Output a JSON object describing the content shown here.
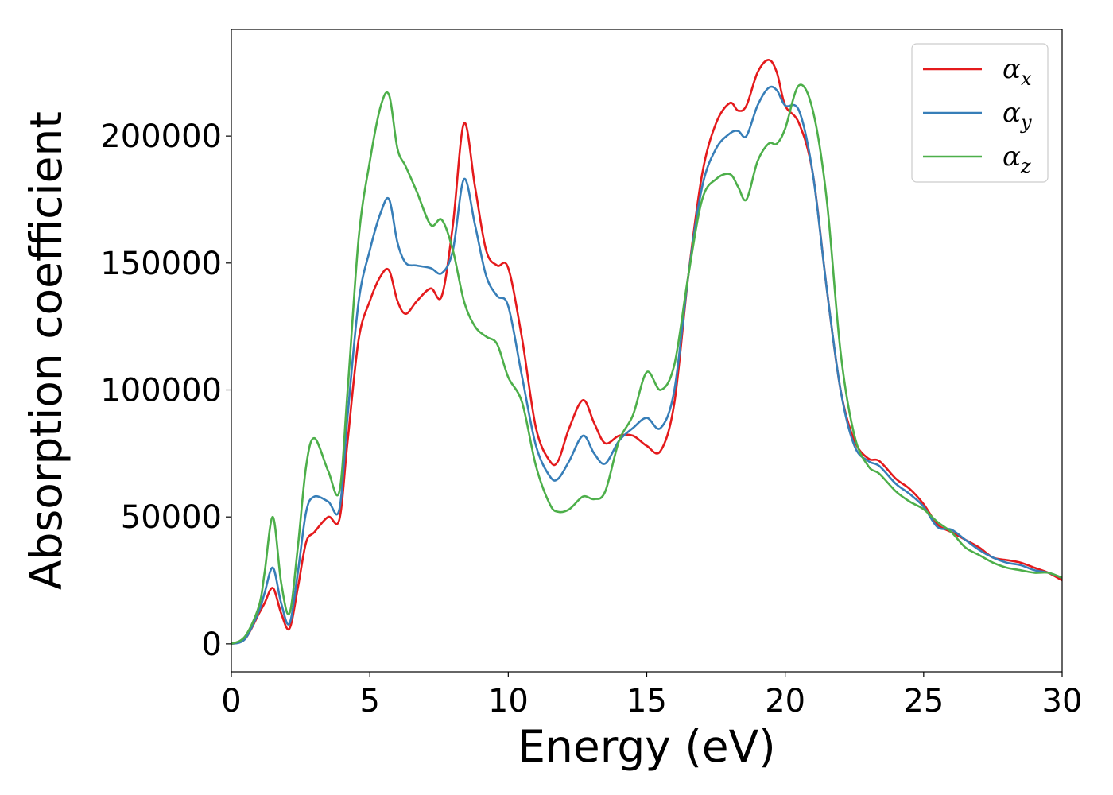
{
  "chart_data": {
    "type": "line",
    "title": "",
    "xlabel": "Energy (eV)",
    "ylabel": "Absorption coefficient",
    "xlim": [
      0,
      30
    ],
    "ylim": [
      -11000,
      242000
    ],
    "xticks": [
      0,
      5,
      10,
      15,
      20,
      25,
      30
    ],
    "yticks": [
      0,
      50000,
      100000,
      150000,
      200000
    ],
    "grid": false,
    "legend_position": "top-right",
    "series": [
      {
        "name": "α_x",
        "legend_main": "α",
        "legend_sub": "x",
        "color": "#e41a1c",
        "x": [
          0,
          0.5,
          1,
          1.2,
          1.5,
          1.8,
          2.1,
          2.4,
          2.7,
          3,
          3.5,
          3.9,
          4.2,
          4.6,
          5,
          5.4,
          5.7,
          6,
          6.3,
          6.7,
          7.2,
          7.6,
          8,
          8.4,
          8.8,
          9.2,
          9.6,
          10,
          10.5,
          11,
          11.5,
          11.8,
          12.2,
          12.7,
          13.1,
          13.5,
          14,
          14.5,
          15,
          15.5,
          16,
          16.5,
          17,
          17.5,
          18,
          18.3,
          18.6,
          19,
          19.4,
          19.7,
          20,
          20.5,
          21,
          21.5,
          22,
          22.5,
          23,
          23.4,
          24,
          24.5,
          25,
          25.5,
          26,
          26.5,
          27,
          27.5,
          28,
          28.5,
          29,
          29.5,
          30
        ],
        "y": [
          0,
          2000,
          12000,
          16000,
          22000,
          12000,
          6000,
          22000,
          40000,
          44000,
          50000,
          49000,
          80000,
          120000,
          135000,
          145000,
          147000,
          135000,
          130000,
          135000,
          140000,
          137000,
          165000,
          205000,
          180000,
          155000,
          149000,
          148000,
          120000,
          85000,
          72000,
          72000,
          85000,
          96000,
          87000,
          79000,
          82000,
          82000,
          78000,
          76000,
          95000,
          145000,
          185000,
          205000,
          213000,
          210000,
          212000,
          225000,
          230000,
          225000,
          212000,
          205000,
          185000,
          140000,
          100000,
          80000,
          73000,
          72000,
          65000,
          61000,
          55000,
          47000,
          44000,
          41000,
          38000,
          34000,
          33000,
          32000,
          30000,
          28000,
          25000
        ]
      },
      {
        "name": "α_y",
        "legend_main": "α",
        "legend_sub": "y",
        "color": "#377eb8",
        "x": [
          0,
          0.5,
          1,
          1.2,
          1.5,
          1.8,
          2.1,
          2.4,
          2.7,
          3,
          3.5,
          3.9,
          4.2,
          4.6,
          5,
          5.4,
          5.7,
          6,
          6.3,
          6.7,
          7.2,
          7.6,
          8,
          8.4,
          8.8,
          9.2,
          9.6,
          10,
          10.5,
          11,
          11.5,
          11.8,
          12.2,
          12.7,
          13.1,
          13.5,
          14,
          14.5,
          15,
          15.5,
          16,
          16.5,
          17,
          17.5,
          18,
          18.3,
          18.6,
          19,
          19.4,
          19.7,
          20,
          20.5,
          21,
          21.5,
          22,
          22.5,
          23,
          23.4,
          24,
          24.5,
          25,
          25.5,
          26,
          26.5,
          27,
          27.5,
          28,
          28.5,
          29,
          29.5,
          30
        ],
        "y": [
          0,
          2000,
          13000,
          20000,
          30000,
          16000,
          8000,
          28000,
          52000,
          58000,
          56000,
          53000,
          90000,
          135000,
          155000,
          170000,
          175000,
          158000,
          150000,
          149000,
          148000,
          146000,
          155000,
          183000,
          165000,
          145000,
          137000,
          133000,
          105000,
          78000,
          66000,
          65000,
          72000,
          82000,
          75000,
          71000,
          80000,
          85000,
          89000,
          85000,
          100000,
          145000,
          180000,
          195000,
          201000,
          202000,
          200000,
          212000,
          219000,
          218000,
          212000,
          210000,
          185000,
          140000,
          100000,
          78000,
          72000,
          70000,
          63000,
          59000,
          54000,
          46000,
          45000,
          41000,
          37000,
          34000,
          32000,
          31000,
          29000,
          28000,
          26000
        ]
      },
      {
        "name": "α_z",
        "legend_main": "α",
        "legend_sub": "z",
        "color": "#4daf4a",
        "x": [
          0,
          0.5,
          1,
          1.2,
          1.5,
          1.8,
          2.1,
          2.4,
          2.7,
          3,
          3.5,
          3.9,
          4.2,
          4.6,
          5,
          5.4,
          5.7,
          6,
          6.3,
          6.7,
          7.2,
          7.6,
          8,
          8.4,
          8.8,
          9.2,
          9.6,
          10,
          10.5,
          11,
          11.5,
          11.8,
          12.2,
          12.7,
          13.1,
          13.5,
          14,
          14.5,
          15,
          15.5,
          16,
          16.5,
          17,
          17.5,
          18,
          18.3,
          18.6,
          19,
          19.4,
          19.7,
          20,
          20.5,
          21,
          21.5,
          22,
          22.5,
          23,
          23.4,
          24,
          24.5,
          25,
          25.5,
          26,
          26.5,
          27,
          27.5,
          28,
          28.5,
          29,
          29.5,
          30
        ],
        "y": [
          0,
          3000,
          15000,
          28000,
          50000,
          24000,
          12000,
          38000,
          70000,
          81000,
          68000,
          60000,
          100000,
          160000,
          190000,
          212000,
          216000,
          195000,
          188000,
          178000,
          165000,
          167000,
          155000,
          135000,
          125000,
          121000,
          118000,
          105000,
          95000,
          70000,
          55000,
          52000,
          53000,
          58000,
          57000,
          60000,
          80000,
          90000,
          107000,
          100000,
          110000,
          145000,
          175000,
          183000,
          185000,
          180000,
          175000,
          190000,
          197000,
          197000,
          203000,
          220000,
          210000,
          175000,
          115000,
          82000,
          70000,
          67000,
          60000,
          56000,
          53000,
          48000,
          44000,
          38000,
          35000,
          32000,
          30000,
          29000,
          28000,
          28000,
          26000
        ]
      }
    ]
  }
}
